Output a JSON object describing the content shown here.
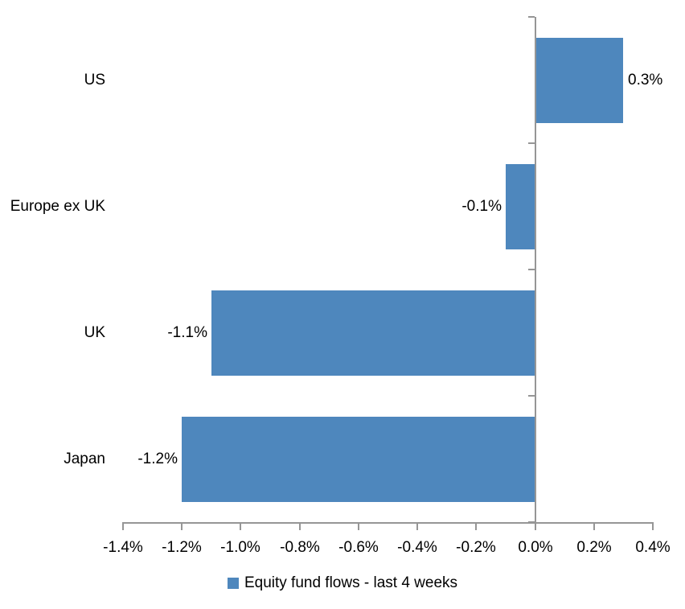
{
  "chart_data": {
    "type": "bar",
    "orientation": "horizontal",
    "title": "",
    "categories": [
      "US",
      "Europe ex UK",
      "UK",
      "Japan"
    ],
    "values": [
      0.3,
      -0.1,
      -1.1,
      -1.2
    ],
    "data_labels": [
      "0.3%",
      "-0.1%",
      "-1.1%",
      "-1.2%"
    ],
    "series_name": "Equity fund flows - last 4 weeks",
    "xlabel": "",
    "ylabel": "",
    "xlim": [
      -1.4,
      0.4
    ],
    "x_ticks": [
      {
        "value": -1.4,
        "label": "-1.4%"
      },
      {
        "value": -1.2,
        "label": "-1.2%"
      },
      {
        "value": -1.0,
        "label": "-1.0%"
      },
      {
        "value": -0.8,
        "label": "-0.8%"
      },
      {
        "value": -0.6,
        "label": "-0.6%"
      },
      {
        "value": -0.4,
        "label": "-0.4%"
      },
      {
        "value": -0.2,
        "label": "-0.2%"
      },
      {
        "value": 0.0,
        "label": "0.0%"
      },
      {
        "value": 0.2,
        "label": "0.2%"
      },
      {
        "value": 0.4,
        "label": "0.4%"
      }
    ],
    "grid": false,
    "legend_position": "bottom",
    "colors": {
      "bar": "#4E87BD",
      "axis": "#969696",
      "text": "#000000",
      "background": "#FFFFFF"
    }
  }
}
